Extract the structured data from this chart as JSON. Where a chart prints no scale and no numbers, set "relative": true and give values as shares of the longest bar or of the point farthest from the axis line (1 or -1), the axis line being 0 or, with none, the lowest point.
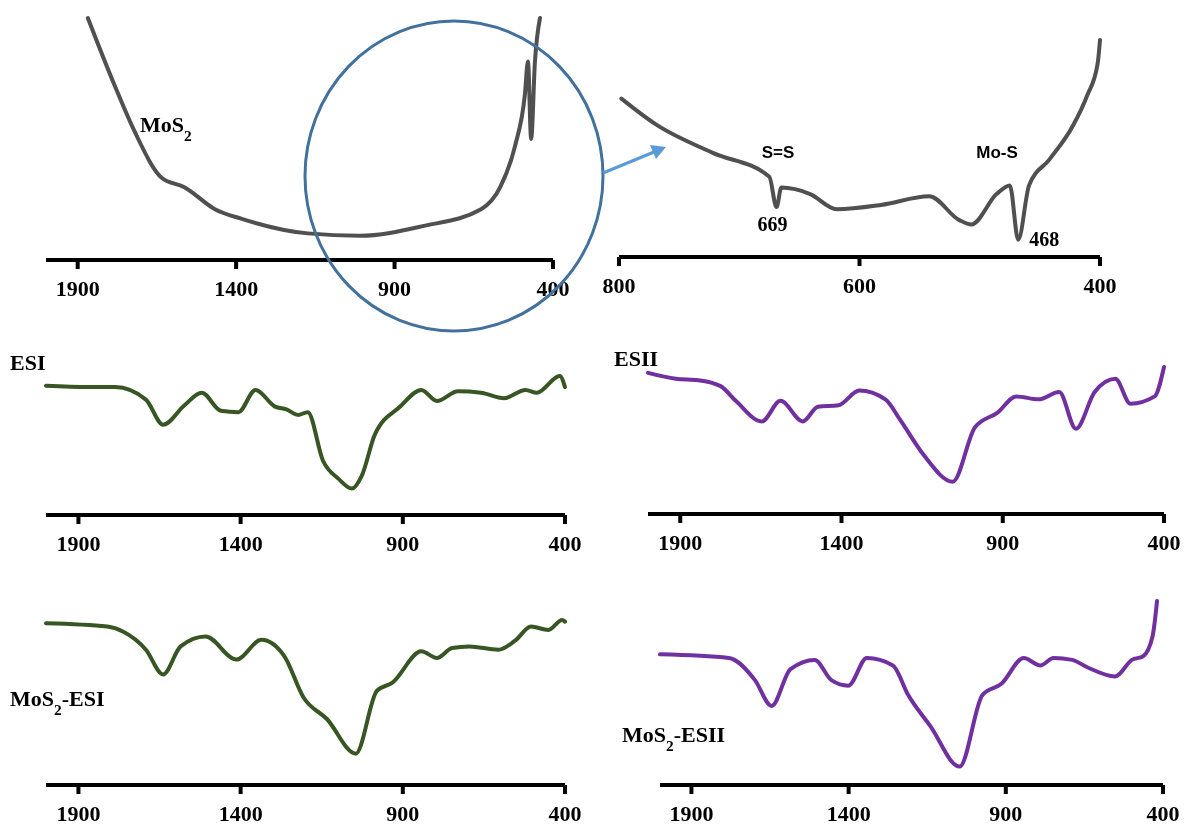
{
  "chart_data": [
    {
      "type": "line",
      "relative": true,
      "xlim": [
        2000,
        400
      ],
      "xticks": [
        1900,
        1400,
        900,
        400
      ],
      "x": [
        1868,
        1783,
        1720,
        1635,
        1562,
        1467,
        1382,
        1174,
        1010,
        811,
        627,
        567,
        520,
        489,
        479,
        469,
        457,
        441
      ],
      "series": [
        {
          "name": "MoS$_{2}$",
          "color": "#505050",
          "values": [
            1.0,
            0.72,
            0.53,
            0.34,
            0.3,
            0.21,
            0.17,
            0.11,
            0.1,
            0.14,
            0.21,
            0.3,
            0.47,
            0.68,
            0.82,
            0.5,
            0.82,
            1.0
          ]
        }
      ]
    },
    {
      "type": "line",
      "relative": true,
      "xlim": [
        800,
        400
      ],
      "xticks": [
        800,
        600,
        400
      ],
      "x": [
        798,
        769,
        722,
        675,
        669,
        665,
        641,
        619,
        582,
        542,
        517,
        507,
        486,
        475,
        468,
        459,
        442,
        423,
        411,
        402,
        400
      ],
      "series": [
        {
          "color": "#505050",
          "values": [
            0.73,
            0.61,
            0.48,
            0.37,
            0.23,
            0.32,
            0.29,
            0.22,
            0.24,
            0.28,
            0.17,
            0.15,
            0.29,
            0.33,
            0.08,
            0.33,
            0.45,
            0.6,
            0.74,
            0.89,
            1.0
          ]
        }
      ],
      "annotations": [
        "S=S",
        {
          "text": "669",
          "x": 669,
          "y": 0.23
        },
        "Mo-S",
        {
          "text": "468",
          "x": 468,
          "y": 0.08
        }
      ]
    },
    {
      "type": "line",
      "relative": true,
      "xlim": [
        2000,
        400
      ],
      "xticks": [
        1900,
        1400,
        900,
        400
      ],
      "x": [
        2000,
        1870,
        1787,
        1692,
        1639,
        1573,
        1520,
        1461,
        1407,
        1354,
        1294,
        1259,
        1223,
        1193,
        1146,
        1098,
        1057,
        1027,
        986,
        908,
        843,
        795,
        730,
        659,
        588,
        522,
        487,
        416,
        400
      ],
      "series": [
        {
          "name": "ESI",
          "color": "#375623",
          "values": [
            0.93,
            0.92,
            0.92,
            0.83,
            0.65,
            0.79,
            0.88,
            0.75,
            0.74,
            0.9,
            0.78,
            0.76,
            0.72,
            0.74,
            0.39,
            0.26,
            0.19,
            0.28,
            0.58,
            0.78,
            0.9,
            0.82,
            0.89,
            0.88,
            0.84,
            0.9,
            0.88,
            1.0,
            0.92
          ]
        }
      ]
    },
    {
      "type": "line",
      "relative": true,
      "xlim": [
        2000,
        400
      ],
      "xticks": [
        1900,
        1400,
        900,
        400
      ],
      "x": [
        2000,
        1914,
        1844,
        1775,
        1728,
        1647,
        1589,
        1520,
        1473,
        1409,
        1345,
        1264,
        1218,
        1148,
        1055,
        986,
        916,
        858,
        789,
        725,
        673,
        615,
        551,
        504,
        429,
        400
      ],
      "series": [
        {
          "name": "ESII",
          "color": "#7030a0",
          "values": [
            0.96,
            0.92,
            0.91,
            0.87,
            0.77,
            0.63,
            0.77,
            0.63,
            0.73,
            0.74,
            0.84,
            0.78,
            0.64,
            0.41,
            0.22,
            0.59,
            0.69,
            0.8,
            0.78,
            0.83,
            0.58,
            0.83,
            0.92,
            0.75,
            0.8,
            1.0
          ]
        }
      ]
    },
    {
      "type": "line",
      "relative": true,
      "xlim": [
        2000,
        400
      ],
      "xticks": [
        1900,
        1400,
        900,
        400
      ],
      "x": [
        2000,
        1811,
        1763,
        1692,
        1639,
        1585,
        1508,
        1413,
        1336,
        1265,
        1206,
        1134,
        1045,
        980,
        932,
        843,
        795,
        748,
        695,
        605,
        551,
        505,
        451,
        409,
        400
      ],
      "series": [
        {
          "name": "MoS$_{2}$-ESI",
          "color": "#375623",
          "values": [
            0.98,
            0.96,
            0.93,
            0.82,
            0.67,
            0.84,
            0.9,
            0.76,
            0.88,
            0.78,
            0.53,
            0.4,
            0.19,
            0.57,
            0.62,
            0.81,
            0.77,
            0.83,
            0.84,
            0.82,
            0.88,
            0.96,
            0.94,
            1.0,
            0.99
          ]
        }
      ]
    },
    {
      "type": "line",
      "relative": true,
      "xlim": [
        2000,
        400
      ],
      "xticks": [
        1900,
        1400,
        900,
        400
      ],
      "x": [
        2000,
        1781,
        1698,
        1645,
        1585,
        1508,
        1455,
        1401,
        1342,
        1259,
        1211,
        1140,
        1047,
        974,
        914,
        843,
        790,
        748,
        689,
        641,
        552,
        499,
        463,
        433,
        419
      ],
      "series": [
        {
          "name": "MoS$_{2}$-ESII",
          "color": "#7030a0",
          "values": [
            0.71,
            0.69,
            0.57,
            0.43,
            0.63,
            0.68,
            0.57,
            0.54,
            0.69,
            0.65,
            0.49,
            0.32,
            0.1,
            0.49,
            0.55,
            0.69,
            0.65,
            0.69,
            0.68,
            0.64,
            0.59,
            0.68,
            0.7,
            0.81,
            1.0
          ]
        }
      ]
    }
  ]
}
